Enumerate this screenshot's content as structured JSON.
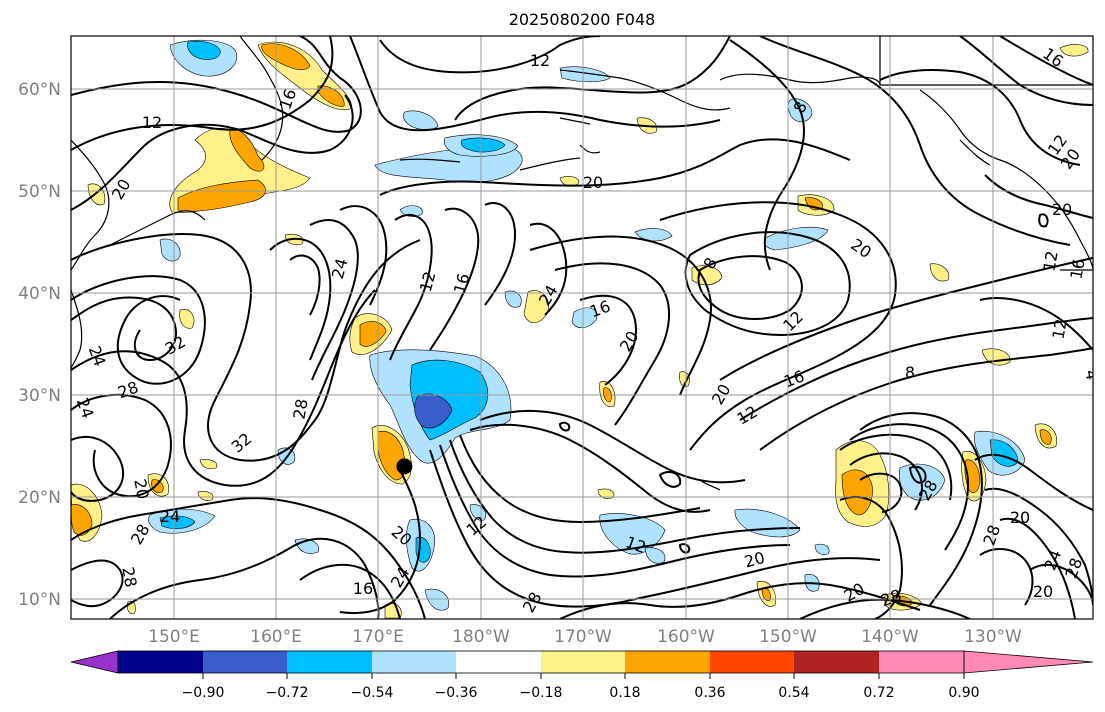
{
  "title": "2025080200 F048",
  "lat_labels": [
    "60°N",
    "50°N",
    "40°N",
    "30°N",
    "20°N",
    "10°N"
  ],
  "lon_labels": [
    "150°E",
    "160°E",
    "170°E",
    "180°W",
    "170°W",
    "160°W",
    "150°W",
    "140°W",
    "130°W"
  ],
  "contour_labels": [
    "12",
    "12",
    "16",
    "16",
    "20",
    "20",
    "12",
    "20",
    "8",
    "20",
    "32",
    "24",
    "24",
    "28",
    "32",
    "28",
    "12",
    "16",
    "24",
    "16",
    "20",
    "8",
    "12",
    "20",
    "16",
    "12",
    "8",
    "20",
    "28",
    "24",
    "28",
    "20",
    "20",
    "28",
    "28",
    "12",
    "24",
    "12",
    "20",
    "16",
    "24",
    "28",
    "20",
    "28",
    "20",
    "24",
    "28",
    "20",
    "12",
    "16",
    "12",
    "4"
  ],
  "colorbar": {
    "ticks": [
      "−0.90",
      "−0.72",
      "−0.54",
      "−0.36",
      "−0.18",
      "0.18",
      "0.36",
      "0.54",
      "0.72",
      "0.90"
    ],
    "colors": [
      "#9932cc",
      "#00008b",
      "#3a5fcd",
      "#00bfff",
      "#b0e2ff",
      "#ffffff",
      "#fff08a",
      "#ffa500",
      "#ff4500",
      "#b22222",
      "#ff8ab8"
    ]
  },
  "marker": {
    "lat": 23,
    "lon": 172.5,
    "color": "#000000"
  }
}
